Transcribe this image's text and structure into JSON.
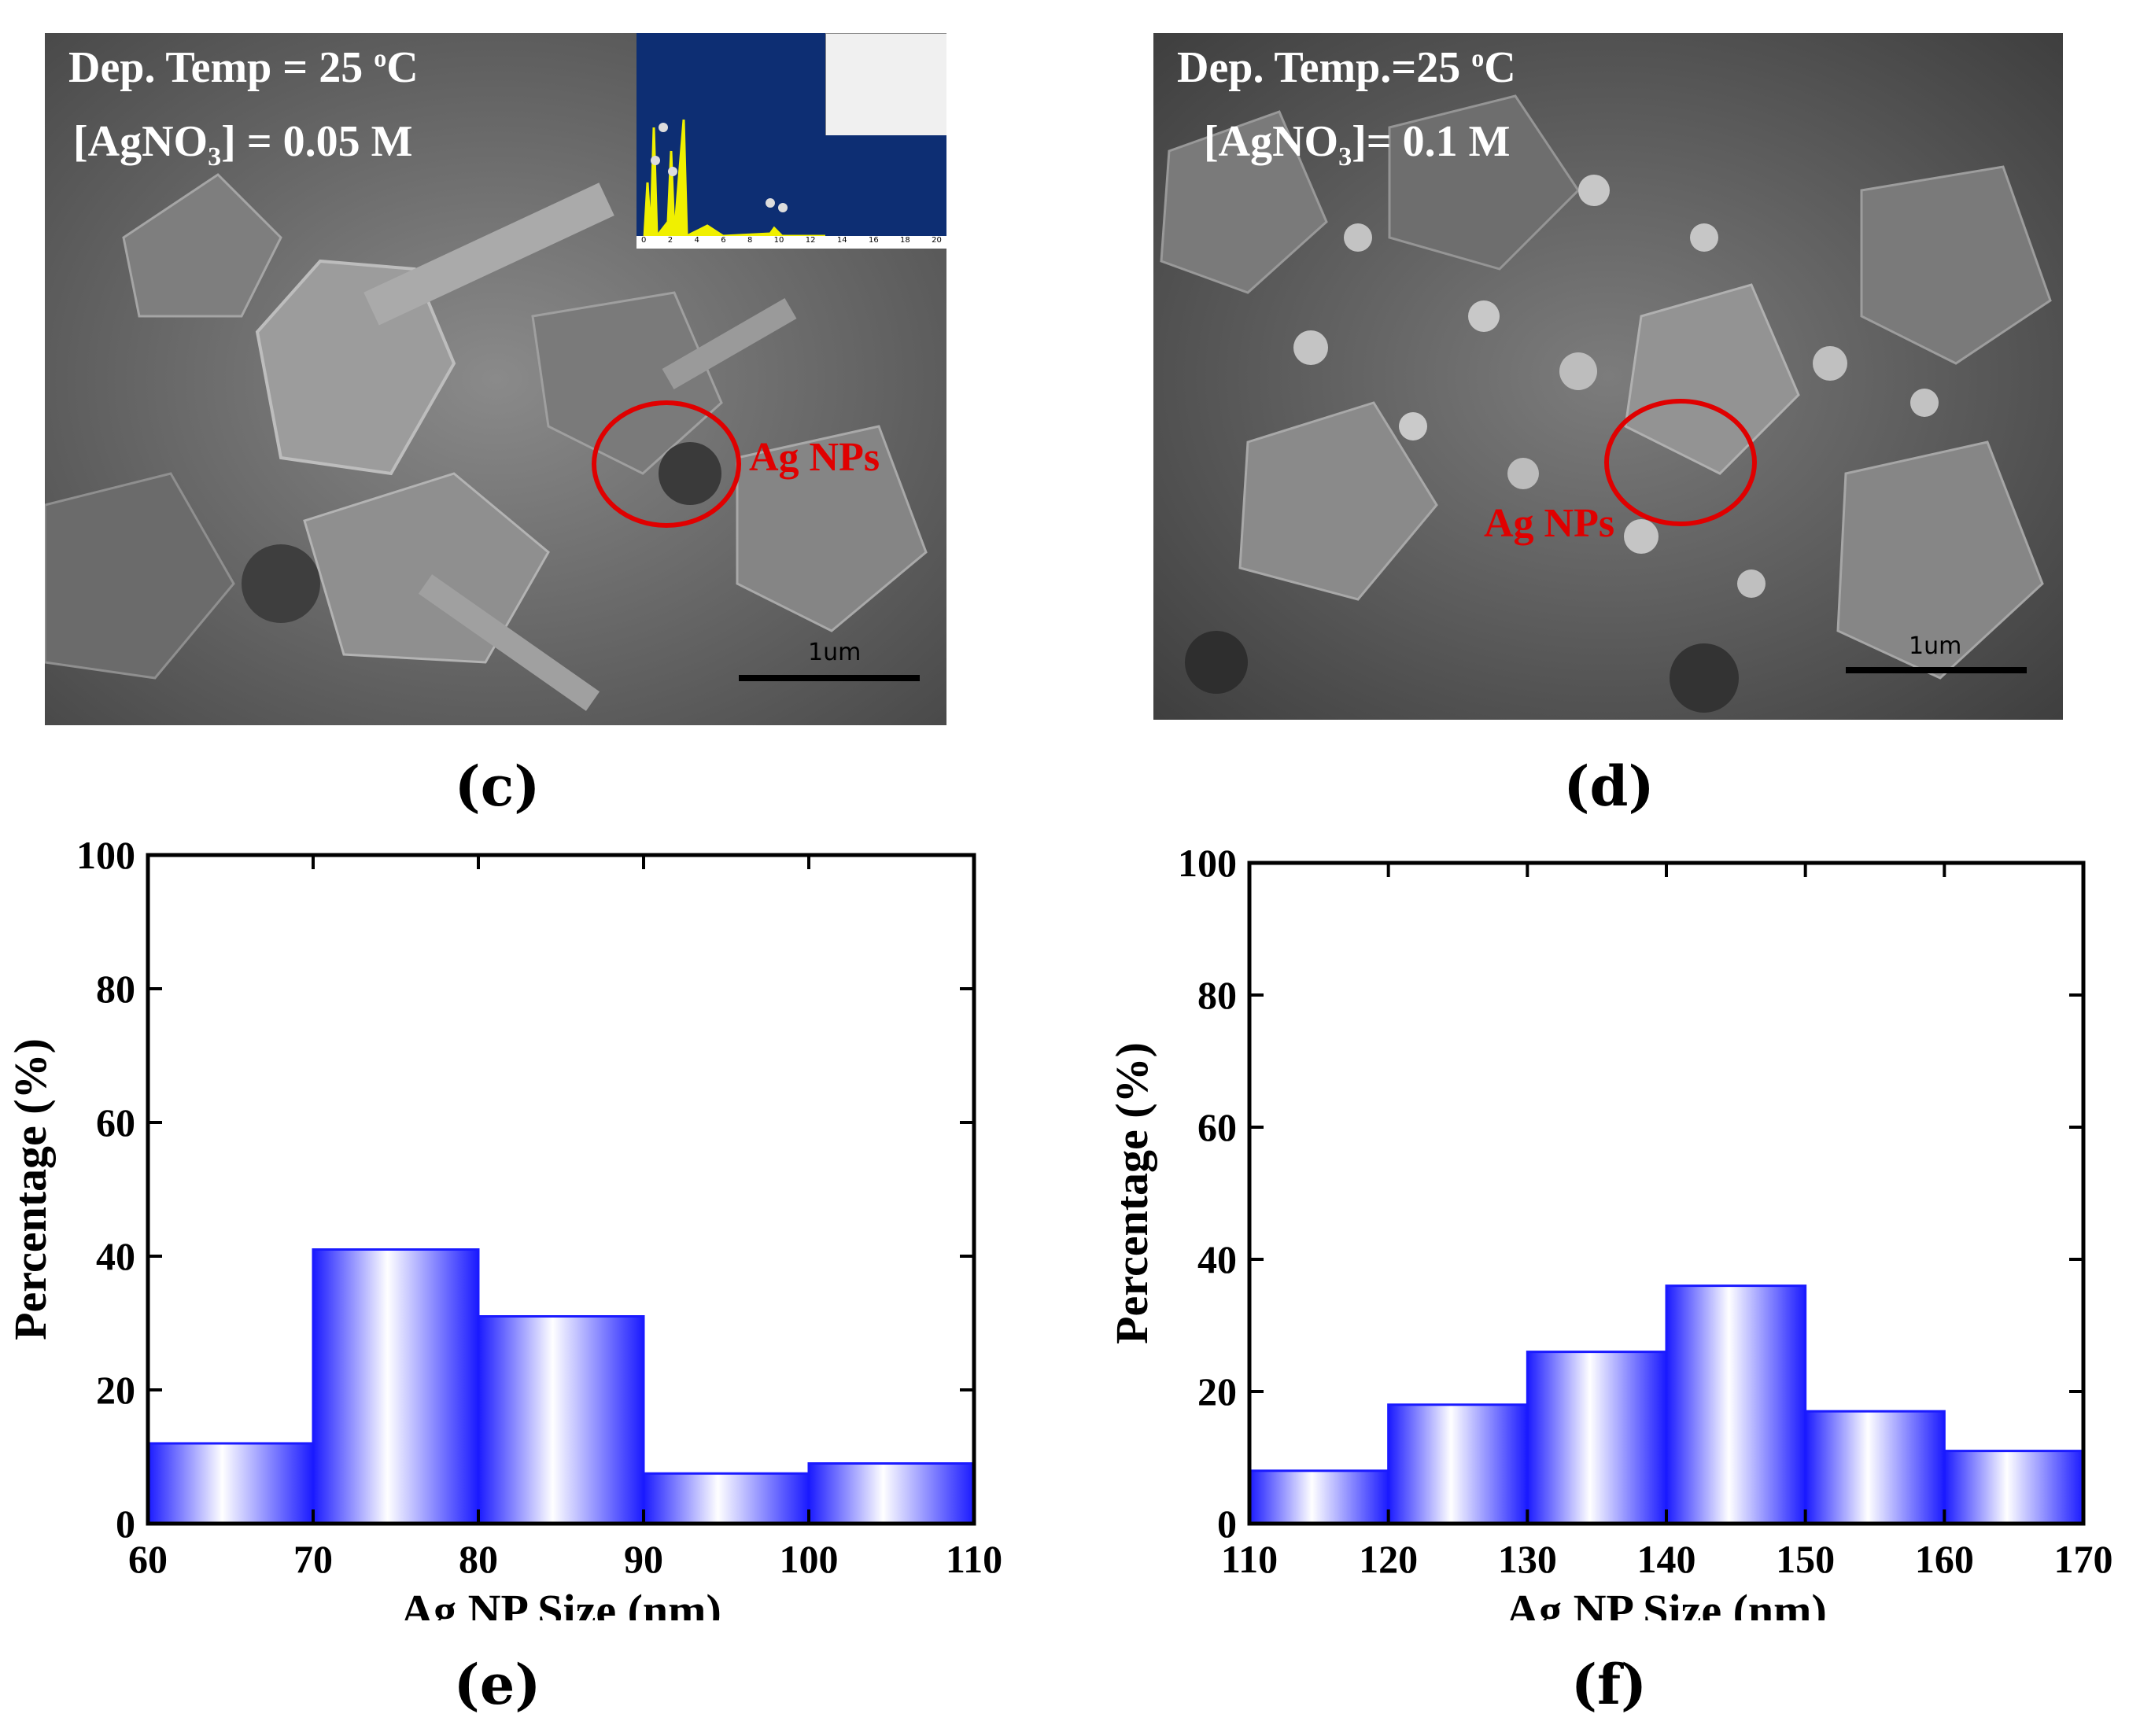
{
  "panels": {
    "c": {
      "letter": "(c)",
      "caption_line1": "Dep. Temp = 25 ",
      "caption_sup": "o",
      "caption_unit": "C",
      "caption_line2_pre": "[AgNO",
      "caption_line2_sub": "3",
      "caption_line2_post": "] = 0.05 M",
      "np_label": "Ag NPs",
      "scale_label": "1um",
      "inset_ticks": [
        "0",
        "2",
        "4",
        "6",
        "8",
        "10",
        "12",
        "14",
        "16",
        "18",
        "20"
      ]
    },
    "d": {
      "letter": "(d)",
      "caption_line1": "Dep. Temp.=25 ",
      "caption_sup": "o",
      "caption_unit": "C",
      "caption_line2_pre": "[AgNO",
      "caption_line2_sub": "3",
      "caption_line2_post": "]= 0.1 M",
      "np_label": "Ag NPs",
      "scale_label": "1um"
    },
    "e": {
      "letter": "(e)"
    },
    "f": {
      "letter": "(f)"
    }
  },
  "colors": {
    "bar_edge": "#1a1aff",
    "bar_center": "#ffffff",
    "circle": "#e00000"
  },
  "chart_data": [
    {
      "type": "bar",
      "panel": "e",
      "bins": [
        [
          60,
          70
        ],
        [
          70,
          80
        ],
        [
          80,
          90
        ],
        [
          90,
          100
        ],
        [
          100,
          110
        ]
      ],
      "values": [
        12,
        41,
        31,
        7.5,
        9
      ],
      "xlabel": "Ag NP Size (nm)",
      "ylabel": "Percentage (%)",
      "xlim": [
        60,
        110
      ],
      "ylim": [
        0,
        100
      ],
      "xticks": [
        60,
        70,
        80,
        90,
        100,
        110
      ],
      "yticks": [
        0,
        20,
        40,
        60,
        80,
        100
      ],
      "grid": false
    },
    {
      "type": "bar",
      "panel": "f",
      "bins": [
        [
          110,
          120
        ],
        [
          120,
          130
        ],
        [
          130,
          140
        ],
        [
          140,
          150
        ],
        [
          150,
          160
        ],
        [
          160,
          170
        ]
      ],
      "values": [
        8,
        18,
        26,
        36,
        17,
        11
      ],
      "xlabel": "Ag NP Size (nm)",
      "ylabel": "Percentage (%)",
      "xlim": [
        110,
        170
      ],
      "ylim": [
        0,
        100
      ],
      "xticks": [
        110,
        120,
        130,
        140,
        150,
        160,
        170
      ],
      "yticks": [
        0,
        20,
        40,
        60,
        80,
        100
      ],
      "grid": false
    }
  ]
}
